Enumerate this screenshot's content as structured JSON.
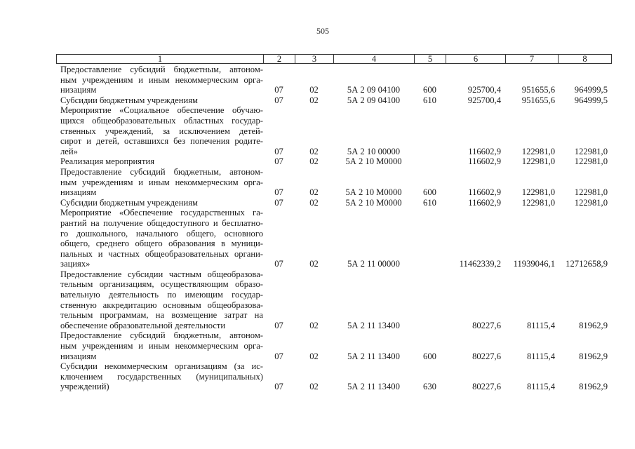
{
  "page_number": "505",
  "table": {
    "headers": [
      "1",
      "2",
      "3",
      "4",
      "5",
      "6",
      "7",
      "8"
    ],
    "rows": [
      {
        "name_lines": [
          "Предоставление субсидий бюджетным, автоном-",
          "ным учреждениям и иным некоммерческим орга-",
          "низациям"
        ],
        "c2": "07",
        "c3": "02",
        "c4": "5А 2 09 04100",
        "c5": "600",
        "c6": "925700,4",
        "c7": "951655,6",
        "c8": "964999,5"
      },
      {
        "name_lines": [
          "Субсидии бюджетным учреждениям"
        ],
        "c2": "07",
        "c3": "02",
        "c4": "5А 2 09 04100",
        "c5": "610",
        "c6": "925700,4",
        "c7": "951655,6",
        "c8": "964999,5"
      },
      {
        "name_lines": [
          "Мероприятие «Социальное обеспечение обучаю-",
          "щихся общеобразовательных областных государ-",
          "ственных учреждений, за исключением детей-",
          "сирот и детей, оставшихся без попечения родите-",
          "лей»"
        ],
        "c2": "07",
        "c3": "02",
        "c4": "5А 2 10 00000",
        "c5": "",
        "c6": "116602,9",
        "c7": "122981,0",
        "c8": "122981,0"
      },
      {
        "name_lines": [
          "Реализация мероприятия"
        ],
        "c2": "07",
        "c3": "02",
        "c4": "5А 2 10 М0000",
        "c5": "",
        "c6": "116602,9",
        "c7": "122981,0",
        "c8": "122981,0"
      },
      {
        "name_lines": [
          "Предоставление субсидий бюджетным, автоном-",
          "ным учреждениям и иным некоммерческим орга-",
          "низациям"
        ],
        "c2": "07",
        "c3": "02",
        "c4": "5А 2 10 М0000",
        "c5": "600",
        "c6": "116602,9",
        "c7": "122981,0",
        "c8": "122981,0"
      },
      {
        "name_lines": [
          "Субсидии бюджетным учреждениям"
        ],
        "c2": "07",
        "c3": "02",
        "c4": "5А 2 10 М0000",
        "c5": "610",
        "c6": "116602,9",
        "c7": "122981,0",
        "c8": "122981,0"
      },
      {
        "name_lines": [
          "Мероприятие «Обеспечение государственных га-",
          "рантий на получение общедоступного и бесплатно-",
          "го дошкольного, начального общего, основного",
          "общего, среднего общего образования в муници-",
          "пальных и частных общеобразовательных органи-",
          "зациях»"
        ],
        "c2": "07",
        "c3": "02",
        "c4": "5А 2 11 00000",
        "c5": "",
        "c6": "11462339,2",
        "c7": "11939046,1",
        "c8": "12712658,9"
      },
      {
        "name_lines": [
          "Предоставление субсидии частным общеобразова-",
          "тельным организациям, осуществляющим образо-",
          "вательную деятельность по имеющим государ-",
          "ственную аккредитацию основным общеобразова-",
          "тельным программам, на возмещение затрат на",
          "обеспечение образовательной деятельности"
        ],
        "c2": "07",
        "c3": "02",
        "c4": "5А 2 11 13400",
        "c5": "",
        "c6": "80227,6",
        "c7": "81115,4",
        "c8": "81962,9"
      },
      {
        "name_lines": [
          "Предоставление субсидий бюджетным, автоном-",
          "ным учреждениям и иным некоммерческим орга-",
          "низациям"
        ],
        "c2": "07",
        "c3": "02",
        "c4": "5А 2 11 13400",
        "c5": "600",
        "c6": "80227,6",
        "c7": "81115,4",
        "c8": "81962,9"
      },
      {
        "name_lines": [
          "Субсидии некоммерческим организациям (за ис-",
          "ключением государственных (муниципальных)",
          "учреждений)"
        ],
        "c2": "07",
        "c3": "02",
        "c4": "5А 2 11 13400",
        "c5": "630",
        "c6": "80227,6",
        "c7": "81115,4",
        "c8": "81962,9"
      }
    ]
  }
}
